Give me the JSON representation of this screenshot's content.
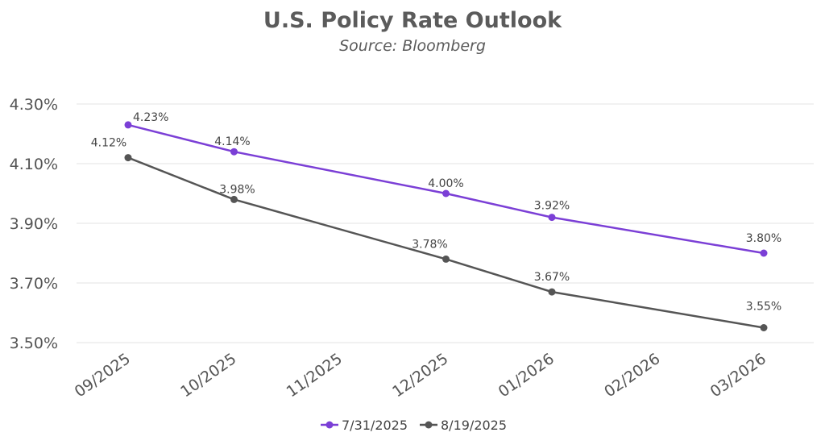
{
  "chart_data": {
    "type": "line",
    "title": "U.S. Policy Rate Outlook",
    "subtitle": "Source: Bloomberg",
    "categories": [
      "09/2025",
      "10/2025",
      "11/2025",
      "12/2025",
      "01/2026",
      "02/2026",
      "03/2026"
    ],
    "series": [
      {
        "name": "7/31/2025",
        "color": "#7b3fd6",
        "values": [
          4.23,
          4.14,
          null,
          4.0,
          3.92,
          null,
          3.8
        ],
        "labels": [
          "4.23%",
          "4.14%",
          null,
          "4.00%",
          "3.92%",
          null,
          "3.80%"
        ]
      },
      {
        "name": "8/19/2025",
        "color": "#555555",
        "values": [
          4.12,
          3.98,
          null,
          3.78,
          3.67,
          null,
          3.55
        ],
        "labels": [
          "4.12%",
          "3.98%",
          null,
          "3.78%",
          "3.67%",
          null,
          "3.55%"
        ]
      }
    ],
    "yticks": [
      4.3,
      4.1,
      3.9,
      3.7,
      3.5
    ],
    "ytick_labels": [
      "4.30%",
      "4.10%",
      "3.90%",
      "3.70%",
      "3.50%"
    ],
    "ylim": [
      3.5,
      4.3
    ],
    "grid": true,
    "legend_position": "bottom"
  }
}
